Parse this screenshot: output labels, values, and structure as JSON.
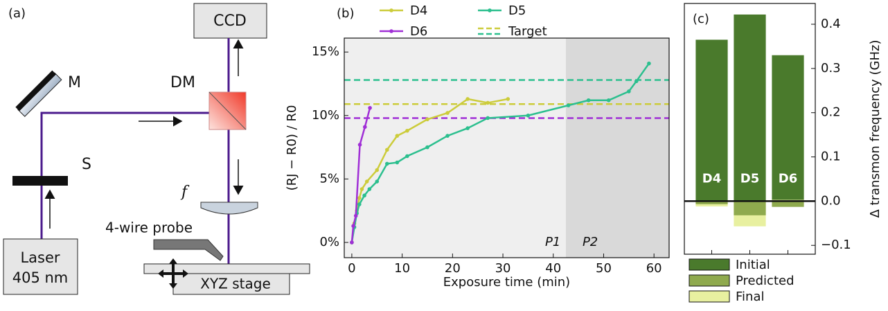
{
  "diagram": {
    "panel": "(a)",
    "ccd": "CCD",
    "mirror": "M",
    "dichroic": "DM",
    "shutter": "S",
    "lens": "f",
    "probe": "4-wire probe",
    "laser": [
      "Laser",
      "405 nm"
    ],
    "stage": "XYZ stage"
  },
  "chart_data": [
    {
      "type": "line",
      "panel": "(b)",
      "x_label": "Exposure time (min)",
      "y_label": "(RJ − R0) / R0",
      "xlim": [
        -1.5,
        63
      ],
      "xticks": [
        0,
        10,
        20,
        30,
        40,
        50,
        60
      ],
      "ylim": [
        -1.2,
        16.1
      ],
      "yticks": [
        {
          "value": 0,
          "label": "0%"
        },
        {
          "value": 5,
          "label": "5%"
        },
        {
          "value": 10,
          "label": "10%"
        },
        {
          "value": 15,
          "label": "15%"
        }
      ],
      "regions": [
        {
          "name": "P1",
          "x": [
            -1.5,
            42.5
          ],
          "color": "#efefef"
        },
        {
          "name": "P2",
          "x": [
            42.5,
            63
          ],
          "color": "#d9d9d9"
        }
      ],
      "target_legend": "Target",
      "series": [
        {
          "name": "D4",
          "color": "#cccc3a",
          "target": 10.9,
          "x": [
            0,
            0.5,
            1,
            1.5,
            2,
            3,
            5,
            7,
            9,
            11,
            15,
            19,
            23,
            27,
            31
          ],
          "values": [
            0,
            1.5,
            2.5,
            3.5,
            4.2,
            4.8,
            5.7,
            7.3,
            8.4,
            8.8,
            9.7,
            10.2,
            11.3,
            11.0,
            11.3
          ]
        },
        {
          "name": "D5",
          "color": "#2bbf8e",
          "target": 12.8,
          "x": [
            0,
            0.5,
            1,
            1.5,
            2.5,
            3.5,
            5,
            7,
            9,
            11,
            15,
            19,
            23,
            27,
            35,
            43,
            47,
            51,
            55,
            56.5,
            59
          ],
          "values": [
            0,
            1.2,
            2.3,
            3.0,
            3.7,
            4.2,
            4.8,
            6.2,
            6.3,
            6.8,
            7.5,
            8.4,
            9.0,
            9.8,
            10.0,
            10.8,
            11.2,
            11.2,
            11.9,
            12.7,
            14.1
          ]
        },
        {
          "name": "D6",
          "color": "#a02fd6",
          "target": 9.8,
          "x": [
            0,
            0.3,
            0.8,
            1.6,
            2.6,
            3.6
          ],
          "values": [
            0,
            1.3,
            2.1,
            7.7,
            9.1,
            10.6
          ]
        }
      ]
    },
    {
      "type": "bar",
      "panel": "(c)",
      "y_label": "Δ transmon frequency (GHz)",
      "categories": [
        "D4",
        "D5",
        "D6"
      ],
      "ylim": [
        -0.12,
        0.447
      ],
      "yticks": [
        {
          "value": -0.1,
          "label": "−0.1"
        },
        {
          "value": 0,
          "label": "0.0"
        },
        0.1,
        0.2,
        0.3,
        0.4
      ],
      "series": [
        {
          "name": "Initial",
          "color": "#4a7a2c",
          "values": [
            0.365,
            0.422,
            0.33
          ]
        },
        {
          "name": "Final",
          "color": "#e8f0a0",
          "values": [
            -0.012,
            -0.057,
            0.003
          ]
        },
        {
          "name": "Predicted",
          "color": "#8faa4e",
          "values": [
            -0.007,
            -0.032,
            -0.013
          ]
        }
      ]
    }
  ]
}
